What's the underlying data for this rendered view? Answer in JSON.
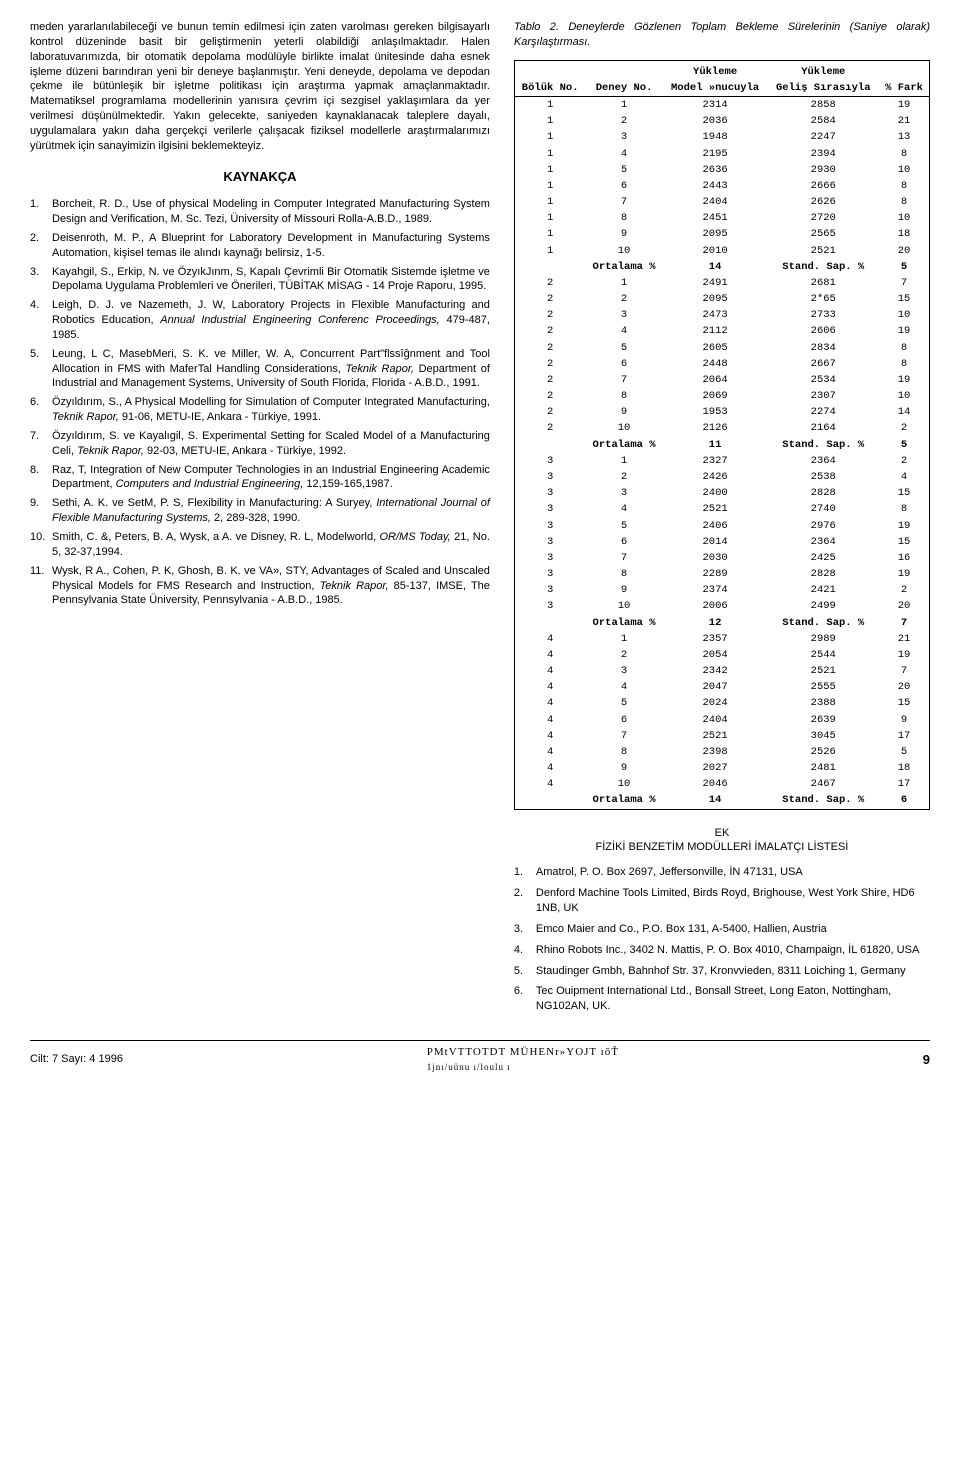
{
  "left": {
    "paragraph": "meden yararlanılabileceği ve bunun temin edilmesi için zaten varolması gereken bilgisayarlı kontrol düzeninde basit bir geliştirmenin yeterli olabildiği anlaşılmaktadır. Halen laboratuvarımızda, bir otomatik depolama modülüyle birlikte imalat ünitesinde daha esnek işleme düzeni barındıran yeni bir deneye başlanmıştır. Yeni deneyde, depolama ve depodan çekme ile bütünleşik bir işletme politikası için araştırma yapmak amaçlanmaktadır. Matematiksel programlama modellerinin yanısıra çevrim içi sezgisel yaklaşımlara da yer verilmesi düşünülmektedir. Yakın gelecekte, saniyeden kaynaklanacak taleplere dayalı, uygulamalara yakın daha gerçekçi verilerle çalışacak fiziksel modellerle araştırmalarımızı yürütmek için sanayimizin ilgisini beklemekteyiz.",
    "kaynakca_title": "KAYNAKÇA",
    "references": [
      {
        "n": "1.",
        "t": "Borcheit, R. D., Use of physical Modeling in Computer Integrated Manufacturing System Design and Verification, M. Sc. Tezi, Üniversity of Missouri Rolla-A.B.D., 1989."
      },
      {
        "n": "2.",
        "t": "Deisenroth, M. P., A Blueprint for Laboratory Development in Manufacturing Systems Automation, kişisel temas ile alındı kaynağı belirsiz, 1-5."
      },
      {
        "n": "3.",
        "t": "Kayahgil, S., Erkip, N. ve ÖzyıkJınm, S, Kapalı Çevrimli Bir Otomatik Sistemde işletme ve Depolama Uygulama Problemleri ve Önerileri, TÜBİTAK MİSAG - 14 Proje Raporu, 1995."
      },
      {
        "n": "4.",
        "t": "Leigh, D. J. ve Nazemeth, J. W, Laboratory Projects in Flexible Manufacturing and Robotics Education, <em>Annual Industrial Engineering Conferenc Proceedings,</em> 479-487, 1985."
      },
      {
        "n": "5.",
        "t": "Leung, L C, MasebMeri, S. K. ve Miller, W. A, Concurrent Part\"flssîĝnment and Tool Allocation in FMS with MaferTal Handling Considerations, <em>Teknik Rapor,</em> Department of Industrial and Management Systems, University of South Florida, Florida - A.B.D., 1991."
      },
      {
        "n": "6.",
        "t": "Özyıldırım, S., A Physical Modelling for Simulation of Computer Integrated Manufacturing, <em>Teknik Rapor,</em> 91-06, METU-IE, Ankara - Türkiye, 1991."
      },
      {
        "n": "7.",
        "t": "Özyıldırım, S. ve Kayalıgil, S. Experimental Setting for Scaled Model of a Manufacturing Celi, <em>Teknik Rapor,</em> 92-03, METU-IE, Ankara - Türkiye, 1992."
      },
      {
        "n": "8.",
        "t": "Raz, T, Integration of New Computer Technologies in an Industrial Engineering Academic Department, <em>Computers and Industrial Engineering,</em> 12,159-165,1987."
      },
      {
        "n": "9.",
        "t": "Sethi, A. K. ve SetM, P. S, Flexibility in Manufacturing: A Suryey, <em>International Journal of Flexible Manufacturing Systems,</em> 2, 289-328, 1990."
      },
      {
        "n": "10.",
        "t": "Smith, C. &, Peters, B. A, Wysk, a A. ve Disney, R. L, Modelworld, <em>OR/MS Today,</em> 21, No. 5, 32-37,1994."
      },
      {
        "n": "11.",
        "t": "Wysk, R A., Cohen, P. K, Ghosh, B. K. ve VA», STY, Advantages of Scaled and Unscaled Physical Models for FMS Research and Instruction, <em>Teknik Rapor,</em> 85-137, IMSE, The Pennsylvania State Üniversity, Pennsylvania - A.B.D., 1985."
      }
    ]
  },
  "right": {
    "table_caption": "Tablo 2. Deneylerde Gözlenen Toplam Bekleme Sürelerinin (Saniye olarak) Karşılaştırması.",
    "header_top": [
      "",
      "",
      "Yükleme",
      "Yükleme",
      ""
    ],
    "header": [
      "Bölük No.",
      "Deney No.",
      "Model »nucuyla",
      "Geliş Sırasıyla",
      "% Fark"
    ],
    "rows": [
      [
        "1",
        "1",
        "2314",
        "2858",
        "19"
      ],
      [
        "1",
        "2",
        "2036",
        "2584",
        "21"
      ],
      [
        "1",
        "3",
        "1948",
        "2247",
        "13"
      ],
      [
        "1",
        "4",
        "2195",
        "2394",
        "8"
      ],
      [
        "1",
        "5",
        "2636",
        "2930",
        "10"
      ],
      [
        "1",
        "6",
        "2443",
        "2666",
        "8"
      ],
      [
        "1",
        "7",
        "2404",
        "2626",
        "8"
      ],
      [
        "1",
        "8",
        "2451",
        "2720",
        "10"
      ],
      [
        "1",
        "9",
        "2095",
        "2565",
        "18"
      ],
      [
        "1",
        "10",
        "2010",
        "2521",
        "20"
      ],
      [
        "",
        "Ortalama %",
        "14",
        "Stand. Sap. %",
        "5",
        "avg"
      ],
      [
        "2",
        "1",
        "2491",
        "2681",
        "7"
      ],
      [
        "2",
        "2",
        "2095",
        "2*65",
        "15"
      ],
      [
        "2",
        "3",
        "2473",
        "2733",
        "10"
      ],
      [
        "2",
        "4",
        "2112",
        "2606",
        "19"
      ],
      [
        "2",
        "5",
        "2605",
        "2834",
        "8"
      ],
      [
        "2",
        "6",
        "2448",
        "2667",
        "8"
      ],
      [
        "2",
        "7",
        "2064",
        "2534",
        "19"
      ],
      [
        "2",
        "8",
        "2069",
        "2307",
        "10"
      ],
      [
        "2",
        "9",
        "1953",
        "2274",
        "14"
      ],
      [
        "2",
        "10",
        "2126",
        "2164",
        "2"
      ],
      [
        "",
        "Ortalama %",
        "11",
        "Stand. Sap. %",
        "5",
        "avg"
      ],
      [
        "3",
        "1",
        "2327",
        "2364",
        "2"
      ],
      [
        "3",
        "2",
        "2426",
        "2538",
        "4"
      ],
      [
        "3",
        "3",
        "2400",
        "2828",
        "15"
      ],
      [
        "3",
        "4",
        "2521",
        "2740",
        "8"
      ],
      [
        "3",
        "5",
        "2406",
        "2976",
        "19"
      ],
      [
        "3",
        "6",
        "2014",
        "2364",
        "15"
      ],
      [
        "3",
        "7",
        "2030",
        "2425",
        "16"
      ],
      [
        "3",
        "8",
        "2289",
        "2828",
        "19"
      ],
      [
        "3",
        "9",
        "2374",
        "2421",
        "2"
      ],
      [
        "3",
        "10",
        "2006",
        "2499",
        "20"
      ],
      [
        "",
        "Ortalama %",
        "12",
        "Stand. Sap. %",
        "7",
        "avg"
      ],
      [
        "4",
        "1",
        "2357",
        "2989",
        "21"
      ],
      [
        "4",
        "2",
        "2054",
        "2544",
        "19"
      ],
      [
        "4",
        "3",
        "2342",
        "2521",
        "7"
      ],
      [
        "4",
        "4",
        "2047",
        "2555",
        "20"
      ],
      [
        "4",
        "5",
        "2024",
        "2388",
        "15"
      ],
      [
        "4",
        "6",
        "2404",
        "2639",
        "9"
      ],
      [
        "4",
        "7",
        "2521",
        "3045",
        "17"
      ],
      [
        "4",
        "8",
        "2398",
        "2526",
        "5"
      ],
      [
        "4",
        "9",
        "2027",
        "2481",
        "18"
      ],
      [
        "4",
        "10",
        "2046",
        "2467",
        "17"
      ],
      [
        "",
        "Ortalama %",
        "14",
        "Stand. Sap. %",
        "6",
        "avg"
      ]
    ],
    "appendix_label": "EK",
    "appendix_title": "FİZİKİ BENZETİM MODÜLLERİ İMALATÇI LİSTESİ",
    "appendix": [
      {
        "n": "1.",
        "t": "Amatrol, P. O. Box 2697, Jeffersonville, İN 47131, USA"
      },
      {
        "n": "2.",
        "t": "Denford Machine Tools Limited, Birds Royd, Brighouse, West York Shire, HD6 1NB, UK"
      },
      {
        "n": "3.",
        "t": "Emco Maier and Co., P.O. Box 131, A-5400, Hallien, Austria"
      },
      {
        "n": "4.",
        "t": "Rhino Robots Inc., 3402 N. Mattis, P. O. Box 4010, Champaign, İL 61820, USA"
      },
      {
        "n": "5.",
        "t": "Staudinger Gmbh, Bahnhof Str. 37, Kronvvieden, 8311 Loiching 1, Germany"
      },
      {
        "n": "6.",
        "t": "Tec Ouipment International Ltd., Bonsall Street, Long Eaton, Nottingham, NG102AN, UK."
      }
    ]
  },
  "footer": {
    "left": "Cilt: 7 Sayı: 4 1996",
    "center": "PMtVTTOTDT  MÜHENr»YOJT ıŏŤ",
    "sub": "1jnı/uünu                          ı/loulu ı",
    "page": "9"
  }
}
